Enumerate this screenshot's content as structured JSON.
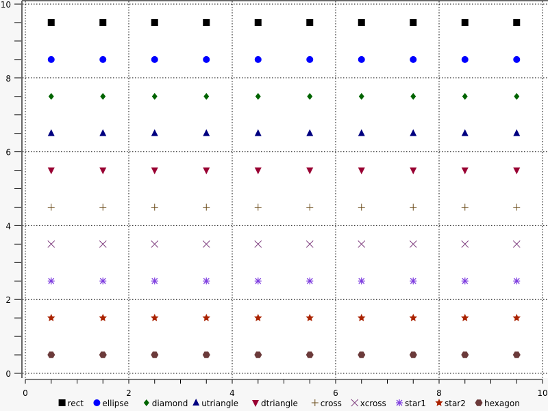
{
  "chart_data": {
    "type": "scatter",
    "title": "",
    "xlabel": "",
    "ylabel": "",
    "xlim": [
      0,
      10
    ],
    "ylim": [
      0,
      10
    ],
    "grid": true,
    "legend_placement": "bottom",
    "x_ticks": [
      "0",
      "2",
      "4",
      "6",
      "8",
      "10"
    ],
    "y_ticks": [
      "0",
      "2",
      "4",
      "6",
      "8",
      "10"
    ],
    "x": [
      0.5,
      1.5,
      2.5,
      3.5,
      4.5,
      5.5,
      6.5,
      7.5,
      8.5,
      9.5
    ],
    "series": [
      {
        "name": "rect",
        "marker": "rect",
        "color": "#000000",
        "y": 9.5
      },
      {
        "name": "ellipse",
        "marker": "ellipse",
        "color": "#0000ff",
        "y": 8.5
      },
      {
        "name": "diamond",
        "marker": "diamond",
        "color": "#006400",
        "y": 7.5
      },
      {
        "name": "utriangle",
        "marker": "utriangle",
        "color": "#000080",
        "y": 6.5
      },
      {
        "name": "dtriangle",
        "marker": "dtriangle",
        "color": "#990033",
        "y": 5.5
      },
      {
        "name": "cross",
        "marker": "cross",
        "color": "#6b4c1a",
        "y": 4.5
      },
      {
        "name": "xcross",
        "marker": "xcross",
        "color": "#804080",
        "y": 3.5
      },
      {
        "name": "star1",
        "marker": "star1",
        "color": "#8040e0",
        "y": 2.5
      },
      {
        "name": "star2",
        "marker": "star2",
        "color": "#aa2200",
        "y": 1.5
      },
      {
        "name": "hexagon",
        "marker": "hexagon",
        "color": "#6b3a3a",
        "y": 0.5
      }
    ]
  }
}
